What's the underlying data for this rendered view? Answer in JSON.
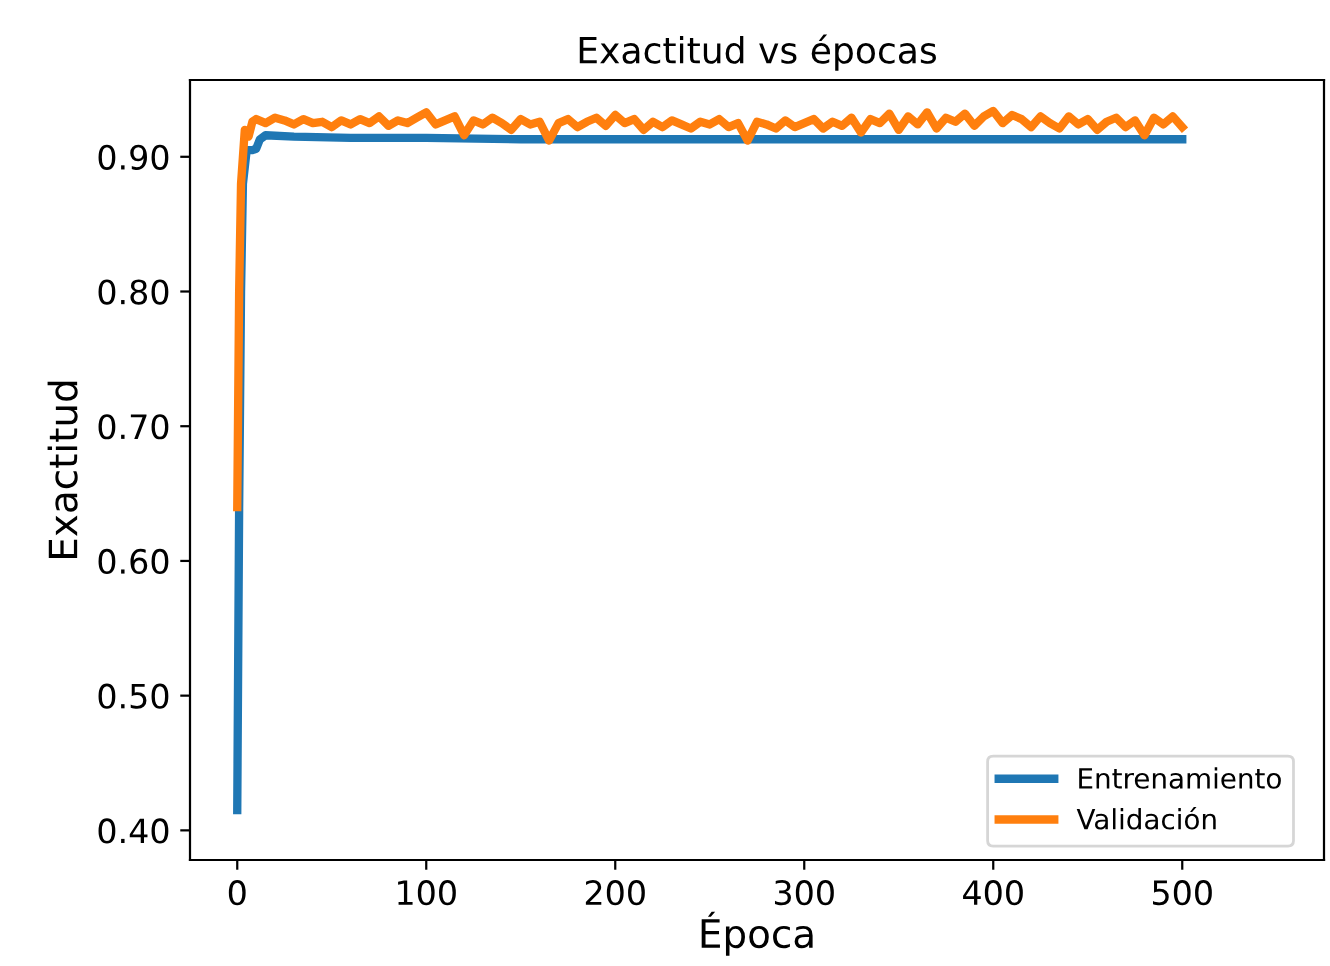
{
  "chart_data": {
    "type": "line",
    "title": "Exactitud vs épocas",
    "xlabel": "Época",
    "ylabel": "Exactitud",
    "xlim": [
      -25,
      575
    ],
    "ylim": [
      0.378,
      0.957
    ],
    "xticks": [
      0,
      100,
      200,
      300,
      400,
      500
    ],
    "yticks": [
      {
        "value": 0.4,
        "label": "0.40"
      },
      {
        "value": 0.5,
        "label": "0.50"
      },
      {
        "value": 0.6,
        "label": "0.60"
      },
      {
        "value": 0.7,
        "label": "0.70"
      },
      {
        "value": 0.8,
        "label": "0.80"
      },
      {
        "value": 0.9,
        "label": "0.90"
      }
    ],
    "grid": false,
    "legend": "bottom right",
    "series": [
      {
        "name": "Entrenamiento",
        "color": "#1f77b4",
        "x": [
          0,
          1,
          2,
          3,
          5,
          8,
          10,
          12,
          15,
          30,
          60,
          100,
          150,
          200,
          250,
          300,
          350,
          400,
          450,
          500
        ],
        "values": [
          0.415,
          0.64,
          0.8,
          0.88,
          0.905,
          0.905,
          0.906,
          0.913,
          0.916,
          0.915,
          0.914,
          0.914,
          0.913,
          0.913,
          0.913,
          0.913,
          0.913,
          0.913,
          0.913,
          0.913
        ]
      },
      {
        "name": "Validación",
        "color": "#ff7f0e",
        "x": [
          0,
          1,
          2,
          4,
          6,
          8,
          10,
          15,
          20,
          25,
          30,
          35,
          40,
          45,
          50,
          55,
          60,
          65,
          70,
          75,
          80,
          85,
          90,
          95,
          100,
          105,
          110,
          115,
          120,
          125,
          130,
          135,
          140,
          145,
          150,
          155,
          160,
          165,
          170,
          175,
          180,
          185,
          190,
          195,
          200,
          205,
          210,
          215,
          220,
          225,
          230,
          235,
          240,
          245,
          250,
          255,
          260,
          265,
          270,
          275,
          280,
          285,
          290,
          295,
          300,
          305,
          310,
          315,
          320,
          325,
          330,
          335,
          340,
          345,
          350,
          355,
          360,
          365,
          370,
          375,
          380,
          385,
          390,
          395,
          400,
          405,
          410,
          415,
          420,
          425,
          430,
          435,
          440,
          445,
          450,
          455,
          460,
          465,
          470,
          475,
          480,
          485,
          490,
          495,
          500
        ],
        "values": [
          0.64,
          0.8,
          0.88,
          0.92,
          0.915,
          0.926,
          0.928,
          0.925,
          0.929,
          0.927,
          0.924,
          0.928,
          0.925,
          0.926,
          0.922,
          0.927,
          0.924,
          0.928,
          0.925,
          0.93,
          0.923,
          0.927,
          0.925,
          0.929,
          0.933,
          0.924,
          0.927,
          0.93,
          0.916,
          0.927,
          0.924,
          0.929,
          0.925,
          0.92,
          0.928,
          0.924,
          0.926,
          0.912,
          0.925,
          0.928,
          0.922,
          0.926,
          0.929,
          0.923,
          0.931,
          0.925,
          0.928,
          0.92,
          0.926,
          0.922,
          0.927,
          0.924,
          0.921,
          0.926,
          0.924,
          0.928,
          0.922,
          0.925,
          0.912,
          0.926,
          0.924,
          0.921,
          0.927,
          0.922,
          0.925,
          0.928,
          0.921,
          0.926,
          0.923,
          0.929,
          0.918,
          0.928,
          0.925,
          0.932,
          0.92,
          0.93,
          0.924,
          0.933,
          0.921,
          0.929,
          0.926,
          0.932,
          0.923,
          0.93,
          0.934,
          0.925,
          0.931,
          0.928,
          0.922,
          0.93,
          0.925,
          0.921,
          0.93,
          0.924,
          0.928,
          0.92,
          0.926,
          0.929,
          0.922,
          0.927,
          0.916,
          0.929,
          0.924,
          0.93,
          0.922
        ]
      }
    ]
  }
}
